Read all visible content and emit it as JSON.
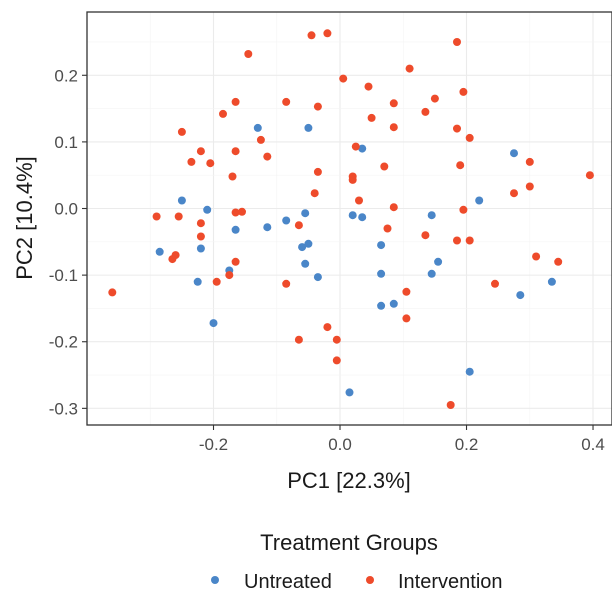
{
  "chart_data": {
    "type": "scatter",
    "xlabel": "PC1 [22.3%]",
    "ylabel": "PC2 [10.4%]",
    "x_ticks": [
      "-0.2",
      "0.0",
      "0.2",
      "0.4"
    ],
    "x_tick_values": [
      -0.2,
      0.0,
      0.2,
      0.4
    ],
    "y_ticks": [
      "-0.3",
      "-0.2",
      "-0.1",
      "0.0",
      "0.1",
      "0.2"
    ],
    "y_tick_values": [
      -0.3,
      -0.2,
      -0.1,
      0.0,
      0.1,
      0.2
    ],
    "xlim": [
      -0.4,
      0.43
    ],
    "ylim": [
      -0.325,
      0.295
    ],
    "grid": true,
    "legend": {
      "title": "Treatment Groups",
      "placement": "bottom"
    },
    "series": [
      {
        "name": "Untreated",
        "color": "#4a86c8",
        "points": [
          [
            -0.13,
            0.121
          ],
          [
            -0.05,
            0.121
          ],
          [
            0.035,
            0.09
          ],
          [
            0.275,
            0.083
          ],
          [
            -0.25,
            0.012
          ],
          [
            -0.21,
            -0.002
          ],
          [
            -0.165,
            -0.032
          ],
          [
            -0.115,
            -0.028
          ],
          [
            -0.085,
            -0.018
          ],
          [
            -0.055,
            -0.007
          ],
          [
            0.02,
            -0.01
          ],
          [
            0.035,
            -0.013
          ],
          [
            0.145,
            -0.01
          ],
          [
            0.22,
            0.012
          ],
          [
            -0.285,
            -0.065
          ],
          [
            -0.22,
            -0.06
          ],
          [
            -0.175,
            -0.093
          ],
          [
            -0.06,
            -0.058
          ],
          [
            -0.05,
            -0.053
          ],
          [
            -0.055,
            -0.083
          ],
          [
            -0.035,
            -0.103
          ],
          [
            0.065,
            -0.055
          ],
          [
            0.065,
            -0.098
          ],
          [
            0.065,
            -0.146
          ],
          [
            0.085,
            -0.143
          ],
          [
            0.145,
            -0.098
          ],
          [
            0.155,
            -0.08
          ],
          [
            0.285,
            -0.13
          ],
          [
            0.335,
            -0.11
          ],
          [
            -0.225,
            -0.11
          ],
          [
            -0.2,
            -0.172
          ],
          [
            0.015,
            -0.276
          ],
          [
            0.205,
            -0.245
          ]
        ]
      },
      {
        "name": "Intervention",
        "color": "#ee4b2b",
        "points": [
          [
            -0.145,
            0.232
          ],
          [
            -0.045,
            0.26
          ],
          [
            -0.02,
            0.263
          ],
          [
            0.185,
            0.25
          ],
          [
            0.005,
            0.195
          ],
          [
            0.045,
            0.183
          ],
          [
            0.11,
            0.21
          ],
          [
            -0.165,
            0.16
          ],
          [
            -0.085,
            0.16
          ],
          [
            -0.035,
            0.153
          ],
          [
            0.085,
            0.158
          ],
          [
            0.135,
            0.145
          ],
          [
            0.15,
            0.165
          ],
          [
            0.195,
            0.175
          ],
          [
            -0.185,
            0.142
          ],
          [
            -0.25,
            0.115
          ],
          [
            -0.125,
            0.103
          ],
          [
            0.05,
            0.136
          ],
          [
            0.085,
            0.122
          ],
          [
            0.185,
            0.12
          ],
          [
            0.205,
            0.106
          ],
          [
            -0.22,
            0.086
          ],
          [
            -0.165,
            0.086
          ],
          [
            -0.235,
            0.07
          ],
          [
            -0.205,
            0.068
          ],
          [
            -0.115,
            0.078
          ],
          [
            0.025,
            0.093
          ],
          [
            0.07,
            0.063
          ],
          [
            0.19,
            0.065
          ],
          [
            0.3,
            0.07
          ],
          [
            -0.17,
            0.048
          ],
          [
            -0.035,
            0.055
          ],
          [
            0.02,
            0.048
          ],
          [
            0.02,
            0.043
          ],
          [
            0.395,
            0.05
          ],
          [
            -0.04,
            0.023
          ],
          [
            0.03,
            0.012
          ],
          [
            0.085,
            0.002
          ],
          [
            0.195,
            -0.002
          ],
          [
            0.275,
            0.023
          ],
          [
            0.3,
            0.033
          ],
          [
            -0.29,
            -0.012
          ],
          [
            -0.255,
            -0.012
          ],
          [
            -0.165,
            -0.006
          ],
          [
            -0.155,
            -0.005
          ],
          [
            -0.22,
            -0.022
          ],
          [
            -0.065,
            -0.025
          ],
          [
            0.075,
            -0.03
          ],
          [
            0.135,
            -0.04
          ],
          [
            0.185,
            -0.048
          ],
          [
            0.205,
            -0.048
          ],
          [
            -0.22,
            -0.042
          ],
          [
            -0.26,
            -0.07
          ],
          [
            -0.265,
            -0.076
          ],
          [
            -0.195,
            -0.11
          ],
          [
            -0.175,
            -0.1
          ],
          [
            -0.165,
            -0.08
          ],
          [
            -0.085,
            -0.113
          ],
          [
            0.31,
            -0.072
          ],
          [
            0.345,
            -0.08
          ],
          [
            0.245,
            -0.113
          ],
          [
            -0.36,
            -0.126
          ],
          [
            0.105,
            -0.125
          ],
          [
            0.105,
            -0.165
          ],
          [
            -0.02,
            -0.178
          ],
          [
            -0.065,
            -0.197
          ],
          [
            -0.005,
            -0.197
          ],
          [
            -0.005,
            -0.228
          ],
          [
            0.175,
            -0.295
          ]
        ]
      }
    ]
  }
}
